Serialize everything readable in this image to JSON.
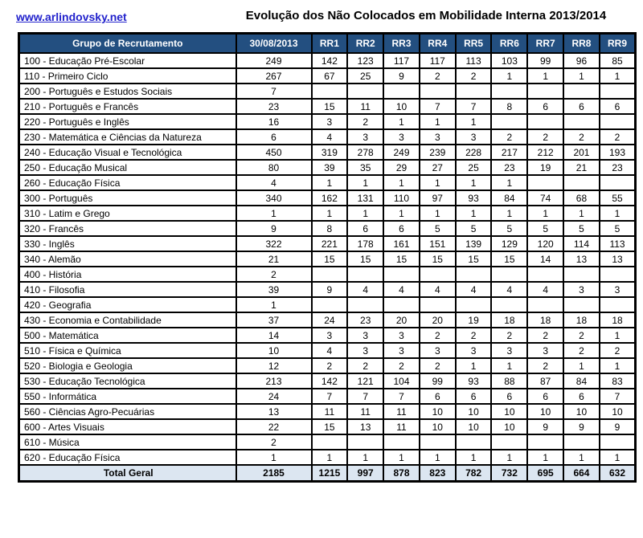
{
  "page": {
    "link_text": "www.arlindovsky.net",
    "title": "Evolução dos Não Colocados em Mobilidade Interna 2013/2014"
  },
  "colors": {
    "header_bg": "#234f80",
    "total_bg": "#dce6f1",
    "link": "#2222cc"
  },
  "table": {
    "columns": [
      "Grupo de Recrutamento",
      "30/08/2013",
      "RR1",
      "RR2",
      "RR3",
      "RR4",
      "RR5",
      "RR6",
      "RR7",
      "RR8",
      "RR9"
    ],
    "rows": [
      {
        "label": "100 - Educação Pré-Escolar",
        "values": [
          "249",
          "142",
          "123",
          "117",
          "117",
          "113",
          "103",
          "99",
          "96",
          "85"
        ]
      },
      {
        "label": "110 - Primeiro Ciclo",
        "values": [
          "267",
          "67",
          "25",
          "9",
          "2",
          "2",
          "1",
          "1",
          "1",
          "1"
        ]
      },
      {
        "label": "200 - Português e Estudos Sociais",
        "values": [
          "7",
          "",
          "",
          "",
          "",
          "",
          "",
          "",
          "",
          ""
        ]
      },
      {
        "label": "210 - Português e Francês",
        "values": [
          "23",
          "15",
          "11",
          "10",
          "7",
          "7",
          "8",
          "6",
          "6",
          "6"
        ]
      },
      {
        "label": "220 - Português e Inglês",
        "values": [
          "16",
          "3",
          "2",
          "1",
          "1",
          "1",
          "",
          "",
          "",
          ""
        ]
      },
      {
        "label": "230 - Matemática e Ciências da Natureza",
        "values": [
          "6",
          "4",
          "3",
          "3",
          "3",
          "3",
          "2",
          "2",
          "2",
          "2"
        ]
      },
      {
        "label": "240 - Educação Visual e Tecnológica",
        "values": [
          "450",
          "319",
          "278",
          "249",
          "239",
          "228",
          "217",
          "212",
          "201",
          "193"
        ]
      },
      {
        "label": "250 - Educação Musical",
        "values": [
          "80",
          "39",
          "35",
          "29",
          "27",
          "25",
          "23",
          "19",
          "21",
          "23"
        ]
      },
      {
        "label": "260 - Educação Física",
        "values": [
          "4",
          "1",
          "1",
          "1",
          "1",
          "1",
          "1",
          "",
          "",
          ""
        ]
      },
      {
        "label": "300 - Português",
        "values": [
          "340",
          "162",
          "131",
          "110",
          "97",
          "93",
          "84",
          "74",
          "68",
          "55"
        ]
      },
      {
        "label": "310 - Latim e Grego",
        "values": [
          "1",
          "1",
          "1",
          "1",
          "1",
          "1",
          "1",
          "1",
          "1",
          "1"
        ]
      },
      {
        "label": "320 - Francês",
        "values": [
          "9",
          "8",
          "6",
          "6",
          "5",
          "5",
          "5",
          "5",
          "5",
          "5"
        ]
      },
      {
        "label": "330 - Inglês",
        "values": [
          "322",
          "221",
          "178",
          "161",
          "151",
          "139",
          "129",
          "120",
          "114",
          "113"
        ]
      },
      {
        "label": "340 - Alemão",
        "values": [
          "21",
          "15",
          "15",
          "15",
          "15",
          "15",
          "15",
          "14",
          "13",
          "13"
        ]
      },
      {
        "label": "400 - História",
        "values": [
          "2",
          "",
          "",
          "",
          "",
          "",
          "",
          "",
          "",
          ""
        ]
      },
      {
        "label": "410 - Filosofia",
        "values": [
          "39",
          "9",
          "4",
          "4",
          "4",
          "4",
          "4",
          "4",
          "3",
          "3"
        ]
      },
      {
        "label": "420 - Geografia",
        "values": [
          "1",
          "",
          "",
          "",
          "",
          "",
          "",
          "",
          "",
          ""
        ]
      },
      {
        "label": "430 - Economia  e Contabilidade",
        "values": [
          "37",
          "24",
          "23",
          "20",
          "20",
          "19",
          "18",
          "18",
          "18",
          "18"
        ]
      },
      {
        "label": "500 - Matemática",
        "values": [
          "14",
          "3",
          "3",
          "3",
          "2",
          "2",
          "2",
          "2",
          "2",
          "1"
        ]
      },
      {
        "label": "510 - Física e Química",
        "values": [
          "10",
          "4",
          "3",
          "3",
          "3",
          "3",
          "3",
          "3",
          "2",
          "2"
        ]
      },
      {
        "label": "520 - Biologia e Geologia",
        "values": [
          "12",
          "2",
          "2",
          "2",
          "2",
          "1",
          "1",
          "2",
          "1",
          "1"
        ]
      },
      {
        "label": "530 - Educação Tecnológica",
        "values": [
          "213",
          "142",
          "121",
          "104",
          "99",
          "93",
          "88",
          "87",
          "84",
          "83"
        ]
      },
      {
        "label": "550 - Informática",
        "values": [
          "24",
          "7",
          "7",
          "7",
          "6",
          "6",
          "6",
          "6",
          "6",
          "7"
        ]
      },
      {
        "label": "560 - Ciências Agro-Pecuárias",
        "values": [
          "13",
          "11",
          "11",
          "11",
          "10",
          "10",
          "10",
          "10",
          "10",
          "10"
        ]
      },
      {
        "label": "600 - Artes Visuais",
        "values": [
          "22",
          "15",
          "13",
          "11",
          "10",
          "10",
          "10",
          "9",
          "9",
          "9"
        ]
      },
      {
        "label": "610 - Música",
        "values": [
          "2",
          "",
          "",
          "",
          "",
          "",
          "",
          "",
          "",
          ""
        ]
      },
      {
        "label": "620 - Educação Física",
        "values": [
          "1",
          "1",
          "1",
          "1",
          "1",
          "1",
          "1",
          "1",
          "1",
          "1"
        ]
      }
    ],
    "total": {
      "label": "Total Geral",
      "values": [
        "2185",
        "1215",
        "997",
        "878",
        "823",
        "782",
        "732",
        "695",
        "664",
        "632"
      ]
    }
  }
}
